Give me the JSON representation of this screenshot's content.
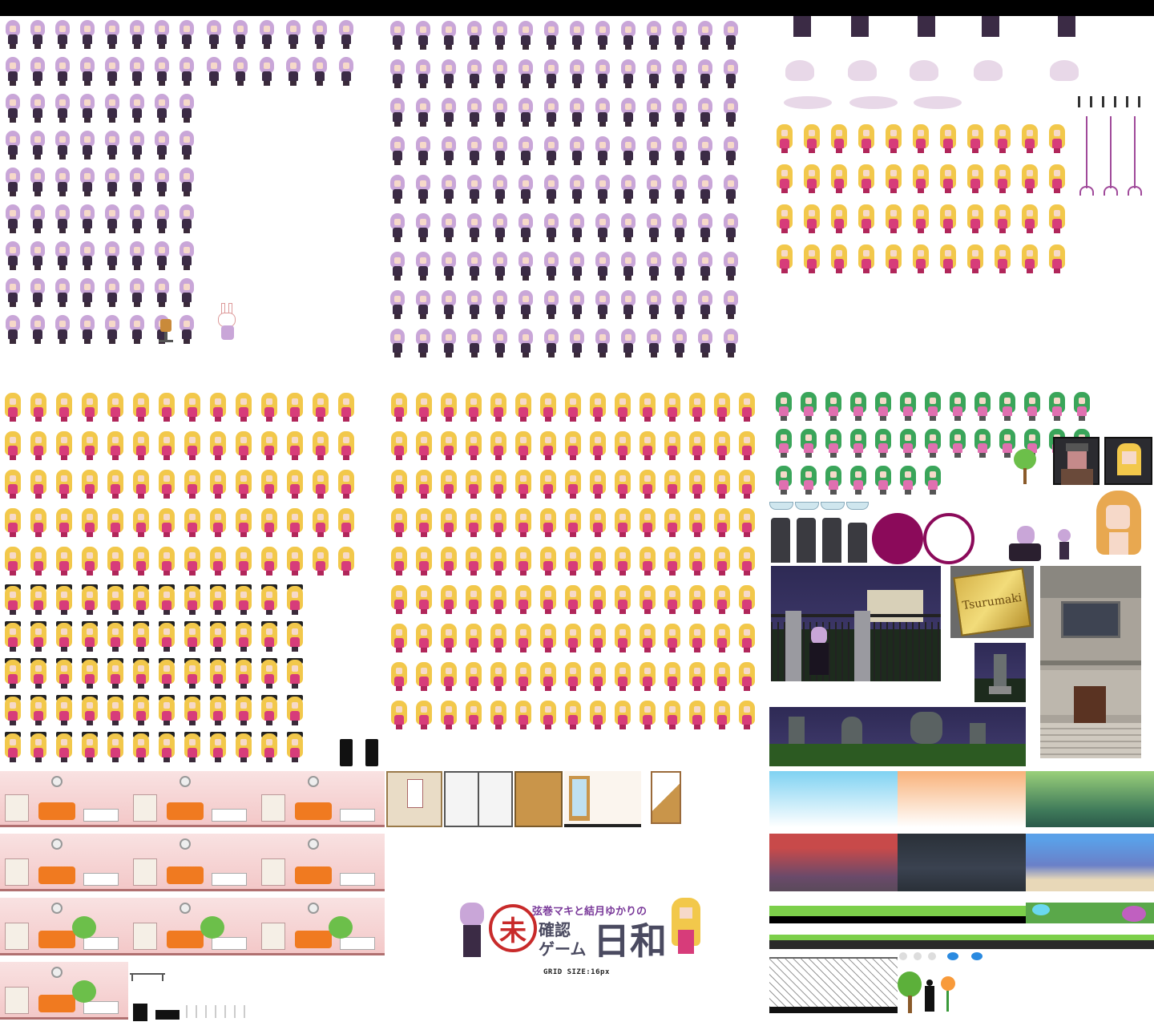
{
  "sheet": {
    "grid_size_label": "GRID SIZE:16px"
  },
  "logo": {
    "subtitle": "弦巻マキと結月ゆかりの",
    "title_line1": "確認",
    "title_line2": "ゲーム",
    "title_big": "日和",
    "stamp": "未"
  },
  "sign": {
    "text": "Tsurumaki"
  },
  "colors": {
    "yukari_hair": "#c9a6d8",
    "maki_hair": "#f2c84b",
    "zunko_hair": "#3aa55a",
    "circle": "#8b0a5a"
  },
  "sprites": {
    "yukari_rows": 9,
    "maki_rows": 10,
    "zunko_rows": 3
  }
}
